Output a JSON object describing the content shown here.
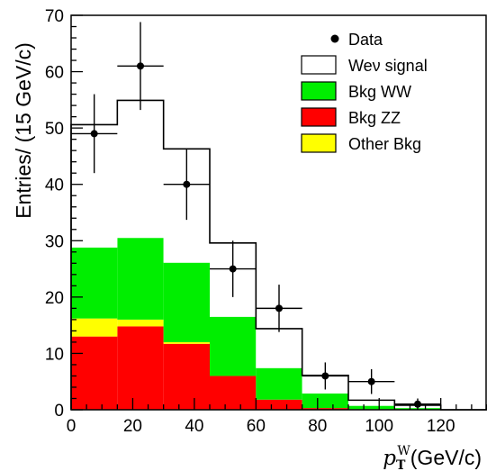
{
  "chart_data": {
    "type": "stacked-histogram",
    "xlabel_symbol": "p",
    "xlabel_sub": "T",
    "xlabel_sup": "W",
    "xlabel_unit": "(GeV/c)",
    "ylabel": "Entries/ (15 GeV/c)",
    "xlim": [
      0,
      135
    ],
    "ylim": [
      0,
      70
    ],
    "xticks": [
      "0",
      "20",
      "40",
      "60",
      "80",
      "100",
      "120"
    ],
    "yticks": [
      "0",
      "10",
      "20",
      "30",
      "40",
      "50",
      "60",
      "70"
    ],
    "bin_edges": [
      0,
      15,
      30,
      45,
      60,
      75,
      90,
      105,
      120,
      135
    ],
    "stack": [
      {
        "name": "Bkg ZZ",
        "color": "#ff0000",
        "values": [
          13,
          14.8,
          11.7,
          6,
          1.8,
          0.3,
          0.1,
          0,
          0
        ]
      },
      {
        "name": "Other Bkg",
        "color": "#ffff00",
        "values": [
          3.2,
          1.2,
          0.3,
          0,
          0,
          0,
          0,
          0,
          0
        ]
      },
      {
        "name": "Bkg WW",
        "color": "#00ee00",
        "values": [
          12.6,
          14.5,
          14.1,
          10.5,
          5.6,
          2.6,
          0.6,
          0.3,
          0
        ]
      },
      {
        "name": "Wev signal",
        "color": "#ffffff",
        "values": [
          21.8,
          24.4,
          20.2,
          13.1,
          7,
          3.2,
          1,
          0.5,
          0
        ]
      }
    ],
    "data_series": {
      "name": "Data",
      "x": [
        7.5,
        22.5,
        37.5,
        52.5,
        67.5,
        82.5,
        97.5,
        112.5
      ],
      "y": [
        49,
        61,
        40,
        25,
        18,
        6,
        5,
        1
      ],
      "yerr": [
        7,
        7.8,
        6.3,
        5,
        4.2,
        2.4,
        2.2,
        1
      ]
    },
    "legend_position": "top-right",
    "legend": [
      {
        "label": "Data",
        "kind": "marker"
      },
      {
        "label": "Weν signal",
        "color": "#ffffff"
      },
      {
        "label": "Bkg WW",
        "color": "#00ee00"
      },
      {
        "label": "Bkg ZZ",
        "color": "#ff0000"
      },
      {
        "label": "Other Bkg",
        "color": "#ffff00"
      }
    ]
  }
}
